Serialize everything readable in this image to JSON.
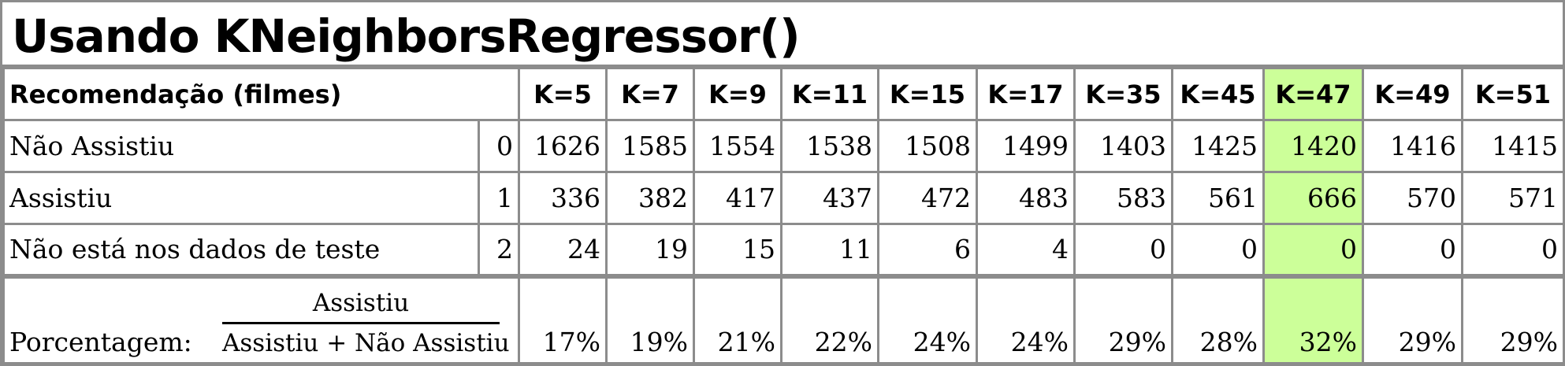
{
  "title": "Usando KNeighborsRegressor()",
  "header": {
    "row_label": "Recomendação (filmes)",
    "k_values": [
      "K=5",
      "K=7",
      "K=9",
      "K=11",
      "K=15",
      "K=17",
      "K=35",
      "K=45",
      "K=47",
      "K=49",
      "K=51"
    ],
    "highlight_column": "K=47",
    "highlight_color": "#ccff99"
  },
  "rows": [
    {
      "label": "Não Assistiu",
      "index": "0",
      "values": [
        "1626",
        "1585",
        "1554",
        "1538",
        "1508",
        "1499",
        "1403",
        "1425",
        "1420",
        "1416",
        "1415"
      ]
    },
    {
      "label": "Assistiu",
      "index": "1",
      "values": [
        "336",
        "382",
        "417",
        "437",
        "472",
        "483",
        "583",
        "561",
        "666",
        "570",
        "571"
      ]
    },
    {
      "label": "Não está nos dados de teste",
      "index": "2",
      "values": [
        "24",
        "19",
        "15",
        "11",
        "6",
        "4",
        "0",
        "0",
        "0",
        "0",
        "0"
      ]
    }
  ],
  "percentage": {
    "label": "Porcentagem:",
    "numerator": "Assistiu",
    "denominator": "Assistiu + Não Assistiu",
    "values": [
      "17%",
      "19%",
      "21%",
      "22%",
      "24%",
      "24%",
      "29%",
      "28%",
      "32%",
      "29%",
      "29%"
    ]
  }
}
